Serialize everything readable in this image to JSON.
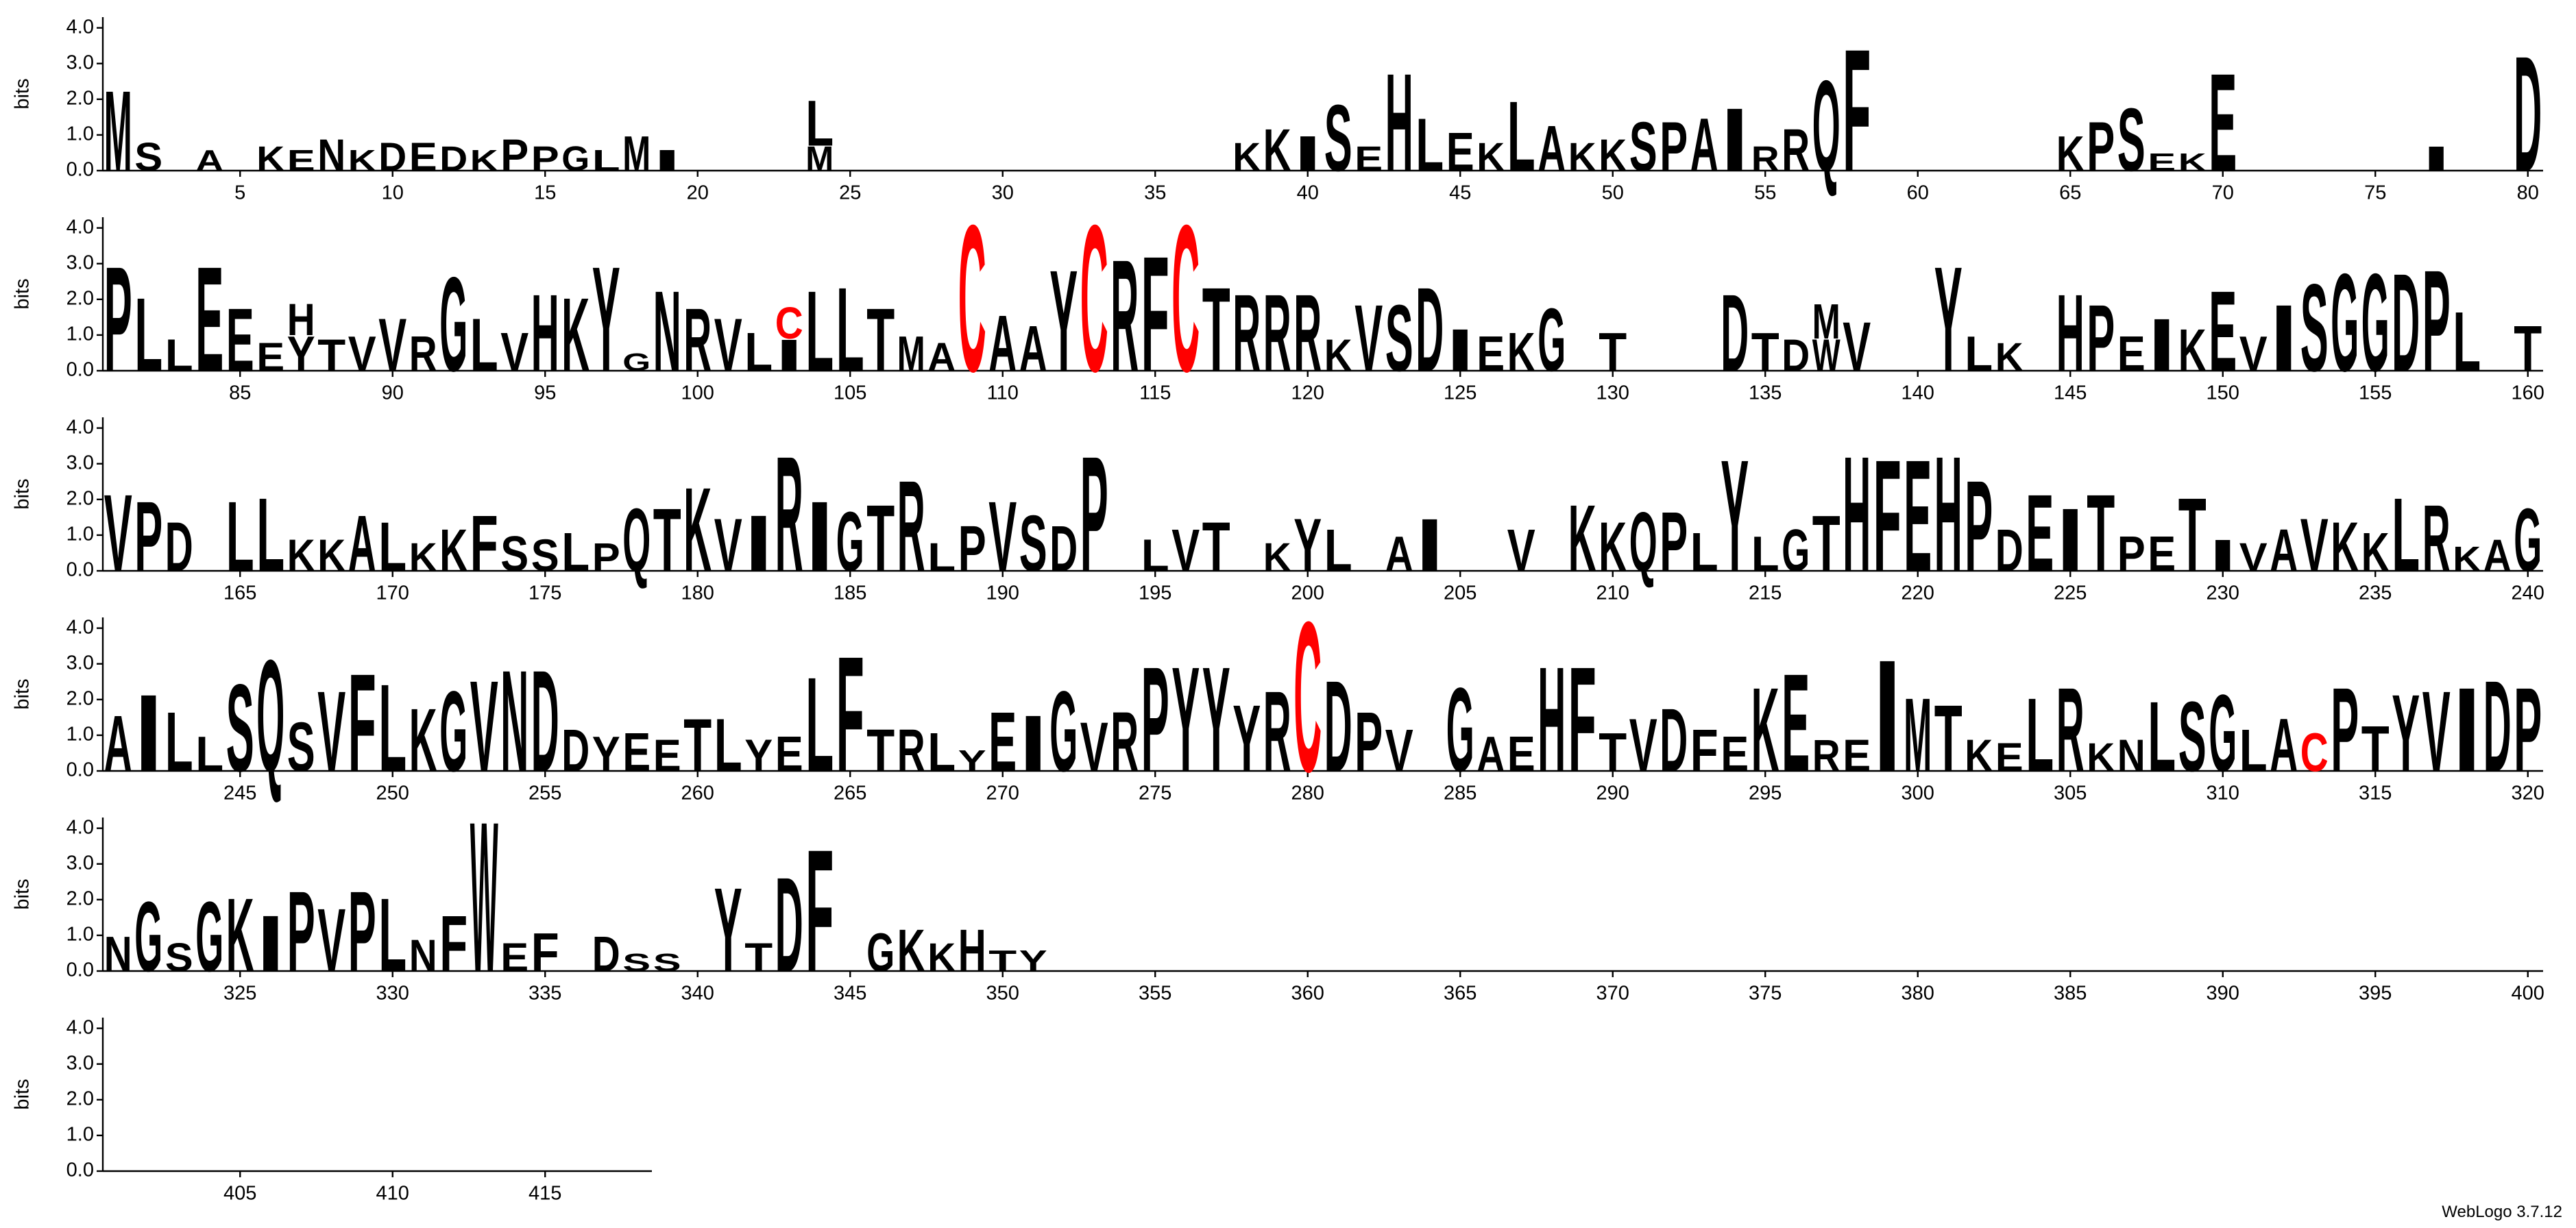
{
  "chart_data": [
    {
      "type": "logo",
      "ylabel": "bits",
      "ylim": [
        0,
        4.3
      ],
      "yticks": [
        {
          "value": 0,
          "label": "0.0"
        },
        {
          "value": 1,
          "label": "1.0"
        },
        {
          "value": 2,
          "label": "2.0"
        },
        {
          "value": 3,
          "label": "3.0"
        },
        {
          "value": 4,
          "label": "4.0"
        }
      ],
      "xlim": [
        0.5,
        80.5
      ],
      "xticks": [
        5,
        10,
        15,
        20,
        25,
        30,
        35,
        40,
        45,
        50,
        55,
        60,
        65,
        70,
        75,
        80
      ],
      "color": "#000000",
      "accent_letter": "C",
      "accent_color": "#ff0000",
      "x": [
        1,
        2,
        4,
        6,
        7,
        8,
        9,
        10,
        11,
        12,
        13,
        14,
        15,
        16,
        17,
        18,
        19,
        24,
        24,
        38,
        39,
        40,
        41,
        42,
        43,
        44,
        45,
        46,
        47,
        48,
        49,
        50,
        51,
        52,
        53,
        54,
        55,
        56,
        57,
        58,
        65,
        66,
        67,
        68,
        69,
        70,
        77,
        80
      ],
      "letters": [
        "M",
        "S",
        "A",
        "K",
        "E",
        "N",
        "K",
        "D",
        "E",
        "D",
        "K",
        "P",
        "P",
        "G",
        "L",
        "M",
        "I",
        "M",
        "L",
        "K",
        "K",
        "I",
        "S",
        "E",
        "H",
        "L",
        "E",
        "K",
        "L",
        "A",
        "K",
        "K",
        "S",
        "P",
        "A",
        "I",
        "R",
        "R",
        "Q",
        "F",
        "K",
        "P",
        "S",
        "E",
        "K",
        "E",
        "I",
        "D"
      ],
      "values": [
        2.3,
        0.8,
        0.6,
        0.7,
        0.6,
        0.9,
        0.6,
        0.8,
        0.8,
        0.7,
        0.6,
        0.9,
        0.7,
        0.7,
        0.6,
        1.0,
        0.6,
        0.7,
        1.3,
        0.8,
        1.2,
        1.0,
        1.9,
        0.7,
        2.8,
        1.5,
        1.1,
        0.8,
        2.0,
        1.3,
        0.8,
        0.9,
        1.4,
        1.4,
        1.5,
        1.8,
        0.7,
        1.2,
        2.6,
        3.5,
        1.0,
        1.4,
        1.8,
        0.5,
        0.5,
        2.8,
        0.7,
        3.3
      ]
    },
    {
      "type": "logo",
      "ylabel": "bits",
      "ylim": [
        0,
        4.3
      ],
      "yticks": [
        {
          "value": 0,
          "label": "0.0"
        },
        {
          "value": 1,
          "label": "1.0"
        },
        {
          "value": 2,
          "label": "2.0"
        },
        {
          "value": 3,
          "label": "3.0"
        },
        {
          "value": 4,
          "label": "4.0"
        }
      ],
      "xlim": [
        80.5,
        160.5
      ],
      "xticks": [
        85,
        90,
        95,
        100,
        105,
        110,
        115,
        120,
        125,
        130,
        135,
        140,
        145,
        150,
        155,
        160
      ],
      "color": "#000000",
      "accent_letter": "C",
      "accent_color": "#ff0000",
      "x": [
        81,
        82,
        83,
        84,
        85,
        86,
        87,
        87,
        88,
        89,
        90,
        91,
        92,
        93,
        94,
        95,
        96,
        97,
        98,
        99,
        100,
        101,
        102,
        103,
        103,
        104,
        105,
        106,
        107,
        108,
        109,
        110,
        111,
        112,
        113,
        114,
        115,
        116,
        117,
        118,
        119,
        120,
        121,
        122,
        123,
        124,
        125,
        126,
        127,
        128,
        130,
        134,
        135,
        136,
        137,
        137,
        138,
        141,
        142,
        143,
        145,
        146,
        147,
        148,
        149,
        150,
        151,
        152,
        153,
        154,
        155,
        156,
        157,
        158,
        160
      ],
      "letters": [
        "P",
        "L",
        "L",
        "E",
        "E",
        "E",
        "Y",
        "H",
        "T",
        "V",
        "V",
        "R",
        "G",
        "L",
        "V",
        "H",
        "K",
        "Y",
        "G",
        "N",
        "R",
        "V",
        "L",
        "I",
        "C",
        "L",
        "L",
        "T",
        "M",
        "A",
        "C",
        "A",
        "A",
        "Y",
        "C",
        "R",
        "F",
        "C",
        "T",
        "R",
        "R",
        "R",
        "K",
        "V",
        "S",
        "D",
        "I",
        "E",
        "K",
        "G",
        "T",
        "D",
        "T",
        "D",
        "W",
        "M",
        "V",
        "Y",
        "L",
        "K",
        "H",
        "P",
        "E",
        "I",
        "K",
        "E",
        "V",
        "I",
        "S",
        "G",
        "G",
        "D",
        "P",
        "L",
        "T"
      ],
      "values": [
        3.0,
        2.1,
        0.9,
        3.0,
        1.8,
        0.8,
        1.0,
        0.9,
        0.9,
        1.0,
        1.5,
        1.0,
        2.7,
        1.5,
        1.1,
        2.2,
        2.1,
        3.0,
        0.5,
        2.3,
        1.8,
        1.5,
        1.1,
        0.9,
        0.9,
        2.3,
        2.4,
        1.8,
        1.0,
        0.8,
        4.2,
        1.6,
        1.3,
        2.9,
        4.2,
        3.2,
        3.3,
        4.2,
        2.4,
        2.2,
        2.2,
        2.2,
        0.9,
        1.9,
        1.9,
        2.4,
        1.2,
        1.0,
        1.1,
        1.8,
        1.1,
        2.2,
        1.1,
        0.9,
        0.9,
        1.0,
        1.4,
        3.0,
        1.0,
        0.8,
        2.2,
        1.9,
        1.0,
        1.5,
        1.2,
        2.3,
        1.0,
        1.9,
        2.5,
        2.8,
        2.8,
        2.8,
        2.9,
        1.7,
        1.3
      ]
    },
    {
      "type": "logo",
      "ylabel": "bits",
      "ylim": [
        0,
        4.3
      ],
      "yticks": [
        {
          "value": 0,
          "label": "0.0"
        },
        {
          "value": 1,
          "label": "1.0"
        },
        {
          "value": 2,
          "label": "2.0"
        },
        {
          "value": 3,
          "label": "3.0"
        },
        {
          "value": 4,
          "label": "4.0"
        }
      ],
      "xlim": [
        160.5,
        240.5
      ],
      "xticks": [
        165,
        170,
        175,
        180,
        185,
        190,
        195,
        200,
        205,
        210,
        215,
        220,
        225,
        230,
        235,
        240
      ],
      "color": "#000000",
      "accent_letter": "C",
      "accent_color": "#ff0000",
      "x": [
        161,
        162,
        163,
        165,
        166,
        167,
        168,
        169,
        170,
        171,
        172,
        173,
        174,
        175,
        176,
        177,
        178,
        179,
        180,
        181,
        182,
        183,
        184,
        185,
        186,
        187,
        188,
        189,
        190,
        191,
        192,
        193,
        195,
        196,
        197,
        199,
        200,
        201,
        203,
        204,
        207,
        209,
        210,
        211,
        212,
        213,
        214,
        215,
        216,
        217,
        218,
        219,
        220,
        221,
        222,
        223,
        224,
        225,
        226,
        227,
        228,
        229,
        230,
        231,
        232,
        233,
        234,
        235,
        236,
        237,
        238,
        239,
        240
      ],
      "letters": [
        "V",
        "P",
        "D",
        "L",
        "L",
        "K",
        "K",
        "A",
        "L",
        "K",
        "K",
        "F",
        "S",
        "S",
        "L",
        "P",
        "Q",
        "T",
        "K",
        "V",
        "I",
        "R",
        "I",
        "G",
        "T",
        "R",
        "L",
        "P",
        "V",
        "S",
        "D",
        "P",
        "L",
        "V",
        "T",
        "K",
        "Y",
        "L",
        "A",
        "I",
        "V",
        "K",
        "K",
        "Q",
        "P",
        "L",
        "Y",
        "L",
        "G",
        "T",
        "H",
        "F",
        "E",
        "H",
        "P",
        "D",
        "E",
        "I",
        "T",
        "P",
        "E",
        "T",
        "I",
        "V",
        "A",
        "V",
        "K",
        "K",
        "L",
        "R",
        "K",
        "A",
        "G"
      ],
      "values": [
        2.2,
        2.0,
        1.4,
        2.0,
        2.1,
        0.9,
        0.9,
        1.6,
        1.4,
        0.8,
        1.2,
        1.6,
        1.0,
        0.9,
        1.1,
        0.8,
        1.8,
        1.8,
        2.4,
        1.5,
        1.6,
        3.3,
        2.0,
        1.7,
        1.9,
        2.6,
        0.8,
        1.3,
        2.0,
        1.6,
        1.3,
        3.3,
        0.9,
        1.2,
        1.4,
        0.8,
        1.5,
        1.2,
        1.0,
        1.5,
        1.2,
        1.9,
        1.4,
        1.7,
        1.7,
        1.1,
        3.2,
        1.0,
        1.2,
        1.6,
        3.3,
        3.2,
        3.2,
        3.3,
        2.6,
        1.2,
        2.2,
        1.8,
        2.2,
        1.0,
        1.0,
        2.1,
        0.9,
        0.8,
        1.2,
        1.5,
        1.4,
        1.1,
        2.1,
        1.9,
        0.7,
        0.9,
        1.8
      ]
    },
    {
      "type": "logo",
      "ylabel": "bits",
      "ylim": [
        0,
        4.3
      ],
      "yticks": [
        {
          "value": 0,
          "label": "0.0"
        },
        {
          "value": 1,
          "label": "1.0"
        },
        {
          "value": 2,
          "label": "2.0"
        },
        {
          "value": 3,
          "label": "3.0"
        },
        {
          "value": 4,
          "label": "4.0"
        }
      ],
      "xlim": [
        240.5,
        320.5
      ],
      "xticks": [
        245,
        250,
        255,
        260,
        265,
        270,
        275,
        280,
        285,
        290,
        295,
        300,
        305,
        310,
        315,
        320
      ],
      "color": "#000000",
      "accent_letter": "C",
      "accent_color": "#ff0000",
      "x": [
        241,
        242,
        243,
        244,
        245,
        246,
        247,
        248,
        249,
        250,
        251,
        252,
        253,
        254,
        255,
        256,
        257,
        258,
        259,
        260,
        261,
        262,
        263,
        264,
        265,
        266,
        267,
        268,
        269,
        270,
        271,
        272,
        273,
        274,
        275,
        276,
        277,
        278,
        279,
        280,
        281,
        282,
        283,
        285,
        286,
        287,
        288,
        289,
        290,
        291,
        292,
        293,
        294,
        295,
        296,
        297,
        298,
        299,
        300,
        301,
        302,
        303,
        304,
        305,
        306,
        307,
        308,
        309,
        310,
        311,
        312,
        313,
        314,
        315,
        316,
        317,
        318,
        319,
        320
      ],
      "letters": [
        "A",
        "I",
        "L",
        "L",
        "S",
        "Q",
        "S",
        "V",
        "F",
        "L",
        "K",
        "G",
        "V",
        "N",
        "D",
        "D",
        "Y",
        "E",
        "E",
        "T",
        "L",
        "Y",
        "E",
        "L",
        "F",
        "T",
        "R",
        "L",
        "Y",
        "E",
        "I",
        "G",
        "V",
        "R",
        "P",
        "Y",
        "Y",
        "Y",
        "R",
        "C",
        "D",
        "P",
        "V",
        "G",
        "A",
        "E",
        "H",
        "F",
        "T",
        "V",
        "D",
        "F",
        "E",
        "K",
        "E",
        "R",
        "E",
        "I",
        "M",
        "T",
        "K",
        "E",
        "L",
        "R",
        "K",
        "N",
        "L",
        "S",
        "G",
        "L",
        "A",
        "C",
        "P",
        "T",
        "Y",
        "V",
        "I",
        "D",
        "P"
      ],
      "values": [
        1.6,
        2.2,
        1.7,
        1.0,
        2.5,
        3.2,
        1.4,
        2.3,
        2.8,
        2.5,
        1.8,
        2.3,
        2.6,
        2.9,
        2.9,
        1.2,
        1.0,
        1.1,
        0.9,
        1.5,
        1.5,
        0.9,
        1.0,
        2.7,
        3.3,
        1.2,
        1.2,
        1.1,
        0.6,
        1.7,
        1.6,
        2.3,
        1.4,
        1.7,
        3.0,
        3.0,
        3.0,
        1.9,
        2.3,
        4.3,
        2.6,
        1.7,
        1.2,
        2.4,
        1.0,
        1.0,
        3.0,
        3.0,
        1.1,
        1.5,
        1.8,
        1.2,
        1.0,
        2.4,
        2.8,
        0.9,
        0.9,
        3.2,
        2.1,
        1.9,
        0.9,
        0.8,
        2.1,
        2.4,
        0.8,
        0.9,
        2.0,
        2.0,
        2.2,
        1.2,
        1.5,
        1.1,
        2.4,
        1.3,
        2.2,
        2.3,
        2.4,
        2.6,
        2.4
      ]
    },
    {
      "type": "logo",
      "ylabel": "bits",
      "ylim": [
        0,
        4.3
      ],
      "yticks": [
        {
          "value": 0,
          "label": "0.0"
        },
        {
          "value": 1,
          "label": "1.0"
        },
        {
          "value": 2,
          "label": "2.0"
        },
        {
          "value": 3,
          "label": "3.0"
        },
        {
          "value": 4,
          "label": "4.0"
        }
      ],
      "xlim": [
        320.5,
        400.5
      ],
      "xticks": [
        325,
        330,
        335,
        340,
        345,
        350,
        355,
        360,
        365,
        370,
        375,
        380,
        385,
        390,
        395,
        400
      ],
      "color": "#000000",
      "accent_letter": "C",
      "accent_color": "#ff0000",
      "x": [
        321,
        322,
        323,
        324,
        325,
        326,
        327,
        328,
        329,
        330,
        331,
        332,
        333,
        334,
        335,
        337,
        338,
        339,
        341,
        342,
        343,
        344,
        346,
        347,
        348,
        349,
        350,
        351
      ],
      "letters": [
        "N",
        "G",
        "S",
        "G",
        "K",
        "I",
        "P",
        "V",
        "P",
        "L",
        "N",
        "F",
        "W",
        "E",
        "F",
        "D",
        "S",
        "S",
        "Y",
        "T",
        "D",
        "F",
        "G",
        "K",
        "K",
        "H",
        "T",
        "Y"
      ],
      "values": [
        1.0,
        2.0,
        0.8,
        2.0,
        2.1,
        1.6,
        2.3,
        1.8,
        2.3,
        2.1,
        0.9,
        1.6,
        4.3,
        0.8,
        1.1,
        1.0,
        0.5,
        0.5,
        2.4,
        0.8,
        2.7,
        3.5,
        1.1,
        1.2,
        0.8,
        1.2,
        0.6,
        0.6
      ]
    },
    {
      "type": "logo",
      "ylabel": "bits",
      "ylim": [
        0,
        4.3
      ],
      "yticks": [
        {
          "value": 0,
          "label": "0.0"
        },
        {
          "value": 1,
          "label": "1.0"
        },
        {
          "value": 2,
          "label": "2.0"
        },
        {
          "value": 3,
          "label": "3.0"
        },
        {
          "value": 4,
          "label": "4.0"
        }
      ],
      "xlim": [
        400.5,
        418.5
      ],
      "xticks": [
        405,
        410,
        415
      ],
      "color": "#000000",
      "accent_letter": "C",
      "accent_color": "#ff0000",
      "x": [],
      "letters": [],
      "values": []
    }
  ],
  "credit": "WebLogo 3.7.12"
}
